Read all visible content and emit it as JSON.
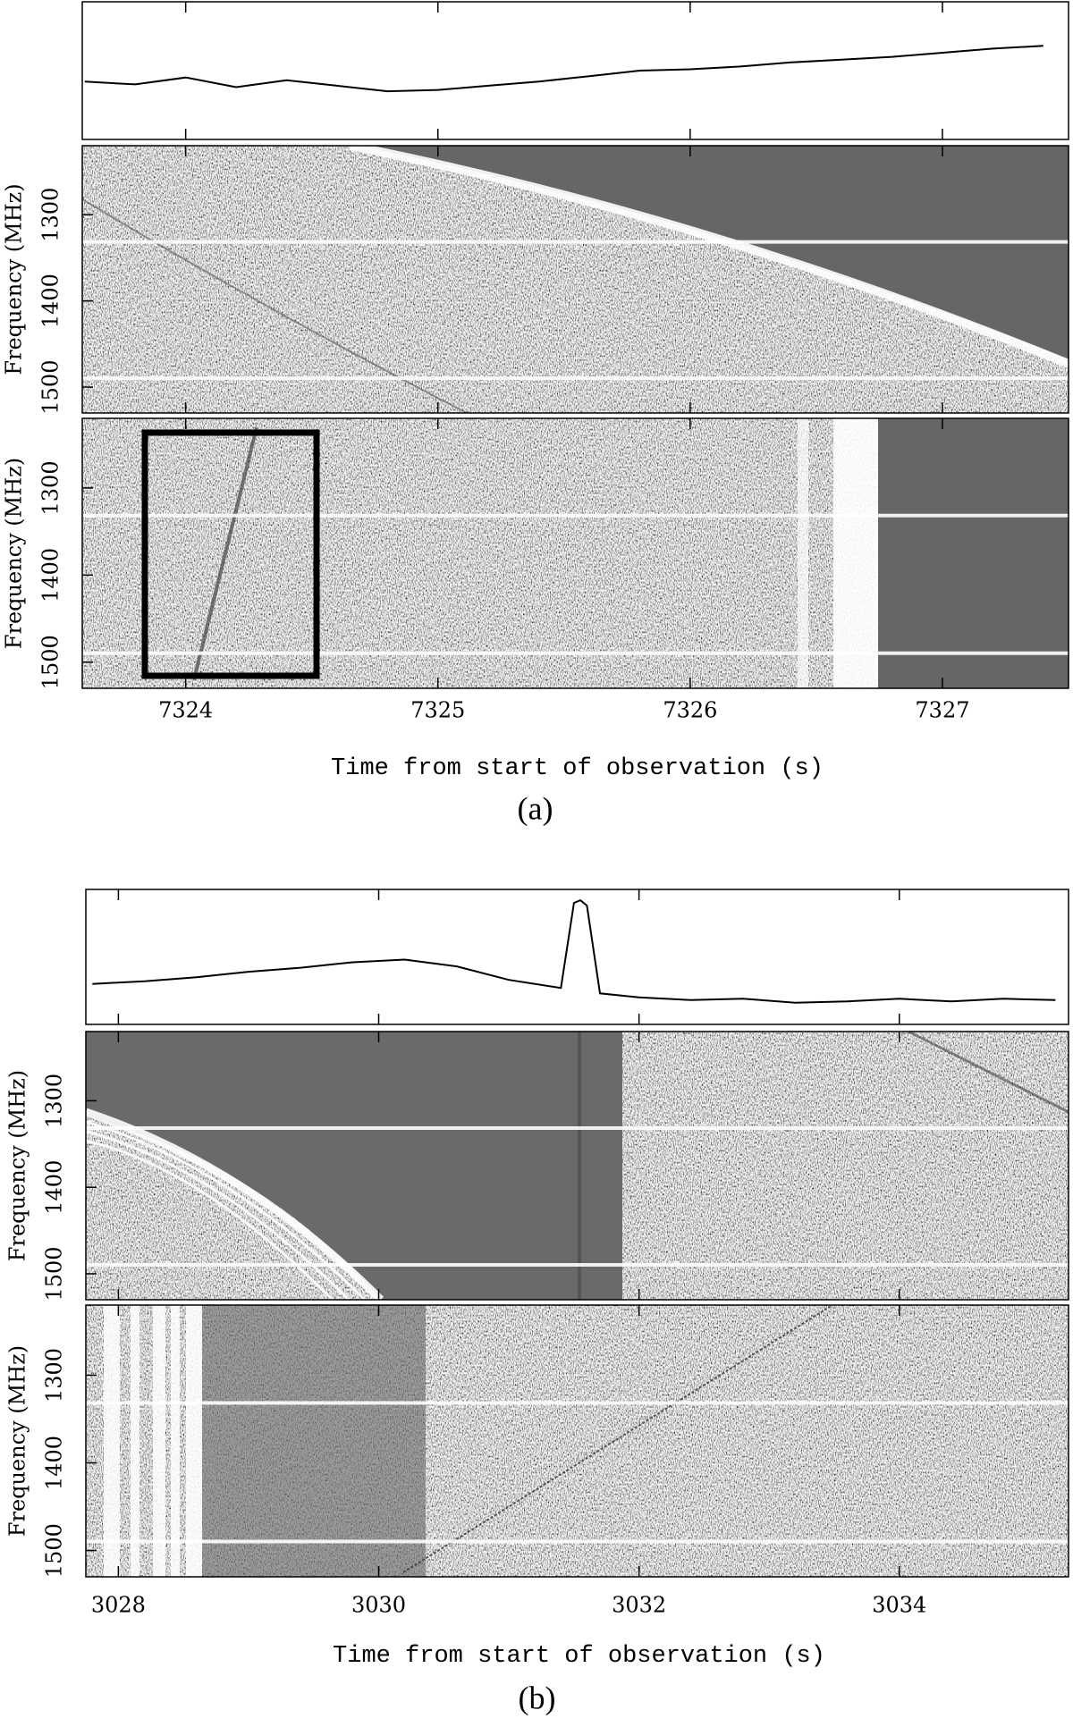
{
  "chart_data": [
    {
      "type": "spectrogram",
      "caption": "(a)",
      "xlabel": "Time from start of observation (s)",
      "xlim": [
        7323.59,
        7327.5
      ],
      "xticks": [
        7324,
        7325,
        7326,
        7327
      ],
      "profile": {
        "x": [
          7323.6,
          7323.8,
          7324.0,
          7324.2,
          7324.4,
          7324.6,
          7324.8,
          7325.0,
          7325.2,
          7325.4,
          7325.6,
          7325.8,
          7326.0,
          7326.2,
          7326.4,
          7326.6,
          7326.8,
          7327.0,
          7327.2,
          7327.4
        ],
        "values": [
          4.2,
          4.0,
          4.5,
          3.8,
          4.3,
          3.9,
          3.5,
          3.6,
          3.9,
          4.2,
          4.6,
          5.0,
          5.1,
          5.3,
          5.6,
          5.8,
          6.0,
          6.3,
          6.6,
          6.8
        ],
        "ylim": [
          0,
          10
        ]
      },
      "panels": [
        {
          "ylabel": "Frequency (MHz)",
          "ylim": [
            1530,
            1220
          ],
          "yticks": [
            1300,
            1400,
            1500
          ]
        },
        {
          "ylabel": "Frequency (MHz)",
          "ylim": [
            1530,
            1220
          ],
          "yticks": [
            1300,
            1400,
            1500
          ]
        }
      ]
    },
    {
      "type": "spectrogram",
      "caption": "(b)",
      "xlabel": "Time from start of observation (s)",
      "xlim": [
        3027.75,
        3035.3
      ],
      "xticks": [
        3028,
        3030,
        3032,
        3034
      ],
      "profile": {
        "x": [
          3027.8,
          3028.2,
          3028.6,
          3029.0,
          3029.4,
          3029.8,
          3030.2,
          3030.6,
          3031.0,
          3031.4,
          3031.5,
          3031.55,
          3031.6,
          3031.7,
          3032.0,
          3032.4,
          3032.8,
          3033.2,
          3033.6,
          3034.0,
          3034.4,
          3034.8,
          3035.2
        ],
        "values": [
          3.0,
          3.2,
          3.5,
          3.9,
          4.2,
          4.6,
          4.8,
          4.3,
          3.3,
          2.7,
          9.0,
          9.2,
          8.8,
          2.3,
          2.0,
          1.8,
          1.9,
          1.6,
          1.7,
          1.9,
          1.7,
          1.9,
          1.8
        ],
        "ylim": [
          0,
          10
        ]
      },
      "panels": [
        {
          "ylabel": "Frequency (MHz)",
          "ylim": [
            1530,
            1220
          ],
          "yticks": [
            1300,
            1400,
            1500
          ]
        },
        {
          "ylabel": "Frequency (MHz)",
          "ylim": [
            1530,
            1220
          ],
          "yticks": [
            1300,
            1400,
            1500
          ]
        }
      ]
    }
  ]
}
